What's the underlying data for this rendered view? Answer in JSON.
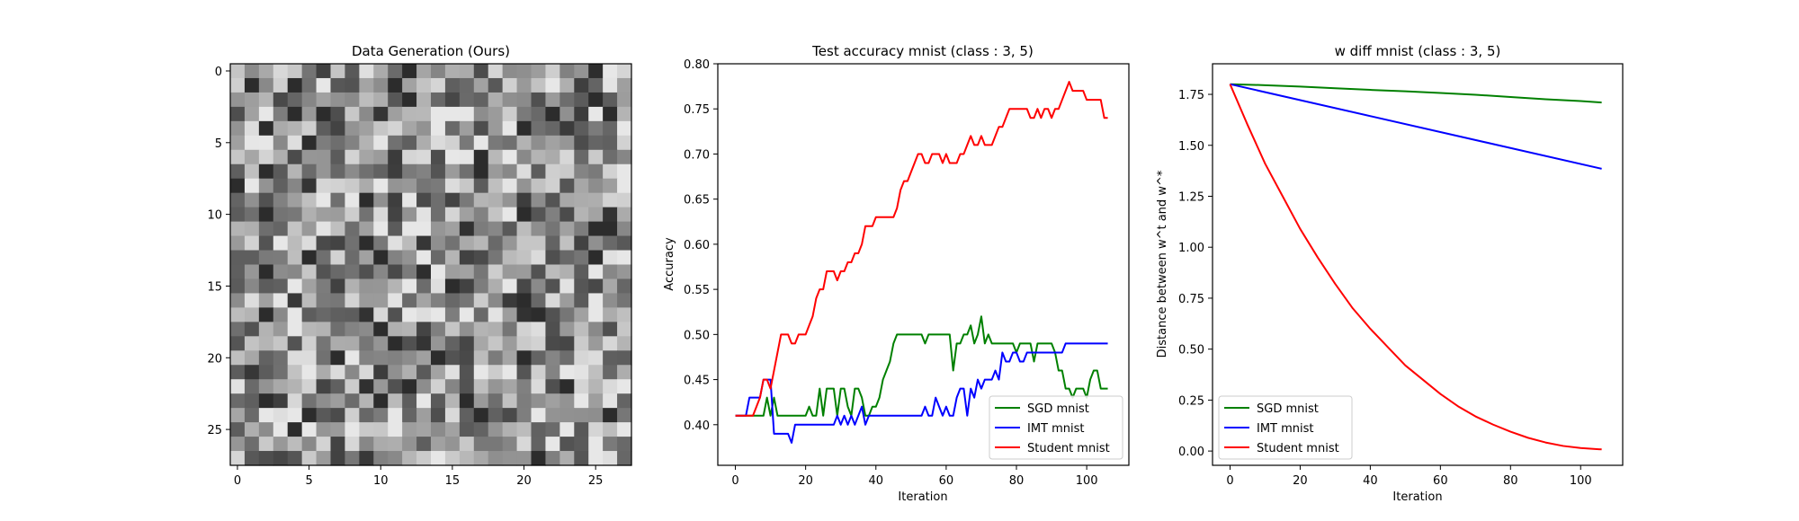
{
  "chart_data": [
    {
      "type": "heatmap",
      "title": "Data Generation (Ours)",
      "xlabel": "",
      "ylabel": "",
      "xlim": [
        -0.5,
        27.5
      ],
      "ylim": [
        27.5,
        -0.5
      ],
      "xticks": [
        0,
        5,
        10,
        15,
        20,
        25
      ],
      "yticks": [
        0,
        5,
        10,
        15,
        20,
        25
      ],
      "colormap": "gray",
      "grid_size": [
        28,
        28
      ]
    },
    {
      "type": "line",
      "title": "Test accuracy mnist (class : 3, 5)",
      "xlabel": "Iteration",
      "ylabel": "Accuracy",
      "xlim": [
        -5,
        112
      ],
      "ylim": [
        0.355,
        0.8
      ],
      "xticks": [
        0,
        20,
        40,
        60,
        80,
        100
      ],
      "yticks": [
        0.4,
        0.45,
        0.5,
        0.55,
        0.6,
        0.65,
        0.7,
        0.75,
        0.8
      ],
      "legend": "lower-right",
      "series": [
        {
          "name": "SGD mnist",
          "color": "#008000",
          "x": [
            0,
            5,
            8,
            9,
            10,
            11,
            12,
            20,
            21,
            22,
            23,
            24,
            25,
            26,
            27,
            28,
            29,
            30,
            31,
            32,
            33,
            34,
            35,
            36,
            37,
            38,
            39,
            40,
            41,
            42,
            43,
            44,
            45,
            46,
            47,
            48,
            53,
            54,
            55,
            61,
            62,
            63,
            64,
            65,
            66,
            67,
            68,
            69,
            70,
            71,
            72,
            73,
            74,
            79,
            80,
            81,
            82,
            83,
            84,
            85,
            86,
            87,
            88,
            89,
            90,
            91,
            92,
            93,
            94,
            95,
            96,
            97,
            98,
            99,
            100,
            101,
            102,
            103,
            104,
            105,
            106
          ],
          "y": [
            0.41,
            0.41,
            0.41,
            0.43,
            0.41,
            0.43,
            0.41,
            0.41,
            0.42,
            0.41,
            0.41,
            0.44,
            0.41,
            0.44,
            0.44,
            0.44,
            0.41,
            0.44,
            0.44,
            0.42,
            0.41,
            0.44,
            0.44,
            0.43,
            0.41,
            0.41,
            0.42,
            0.42,
            0.43,
            0.45,
            0.46,
            0.47,
            0.49,
            0.5,
            0.5,
            0.5,
            0.5,
            0.49,
            0.5,
            0.5,
            0.46,
            0.49,
            0.49,
            0.5,
            0.5,
            0.51,
            0.49,
            0.5,
            0.52,
            0.49,
            0.5,
            0.49,
            0.49,
            0.49,
            0.48,
            0.49,
            0.49,
            0.49,
            0.49,
            0.47,
            0.49,
            0.49,
            0.49,
            0.49,
            0.49,
            0.48,
            0.46,
            0.46,
            0.44,
            0.44,
            0.43,
            0.44,
            0.44,
            0.44,
            0.43,
            0.45,
            0.46,
            0.46,
            0.44,
            0.44,
            0.44
          ]
        },
        {
          "name": "IMT mnist",
          "color": "#0000ff",
          "x": [
            0,
            3,
            4,
            5,
            6,
            7,
            8,
            9,
            10,
            11,
            12,
            13,
            14,
            15,
            16,
            17,
            28,
            29,
            30,
            31,
            32,
            33,
            34,
            35,
            36,
            37,
            38,
            39,
            40,
            41,
            53,
            54,
            55,
            56,
            57,
            58,
            59,
            60,
            61,
            62,
            63,
            64,
            65,
            66,
            67,
            68,
            69,
            70,
            71,
            72,
            73,
            74,
            75,
            76,
            77,
            78,
            79,
            80,
            81,
            82,
            83,
            84,
            85,
            86,
            87,
            88,
            89,
            90,
            91,
            92,
            93,
            94,
            106
          ],
          "y": [
            0.41,
            0.41,
            0.43,
            0.43,
            0.43,
            0.43,
            0.45,
            0.45,
            0.45,
            0.39,
            0.39,
            0.39,
            0.39,
            0.39,
            0.38,
            0.4,
            0.4,
            0.41,
            0.4,
            0.41,
            0.4,
            0.41,
            0.4,
            0.41,
            0.42,
            0.4,
            0.41,
            0.41,
            0.41,
            0.41,
            0.41,
            0.42,
            0.41,
            0.41,
            0.43,
            0.42,
            0.41,
            0.42,
            0.41,
            0.41,
            0.43,
            0.44,
            0.44,
            0.41,
            0.44,
            0.43,
            0.45,
            0.44,
            0.45,
            0.45,
            0.45,
            0.46,
            0.45,
            0.48,
            0.47,
            0.47,
            0.48,
            0.48,
            0.47,
            0.47,
            0.48,
            0.48,
            0.48,
            0.48,
            0.48,
            0.48,
            0.48,
            0.48,
            0.48,
            0.48,
            0.48,
            0.49,
            0.49
          ]
        },
        {
          "name": "Student mnist",
          "color": "#ff0000",
          "x": [
            0,
            5,
            6,
            7,
            8,
            9,
            10,
            11,
            12,
            13,
            14,
            15,
            16,
            17,
            18,
            19,
            20,
            21,
            22,
            23,
            24,
            25,
            26,
            27,
            28,
            29,
            30,
            31,
            32,
            33,
            34,
            35,
            36,
            37,
            38,
            39,
            40,
            41,
            42,
            43,
            44,
            45,
            46,
            47,
            48,
            49,
            50,
            51,
            52,
            53,
            54,
            55,
            56,
            57,
            58,
            59,
            60,
            61,
            62,
            63,
            64,
            65,
            66,
            67,
            68,
            69,
            70,
            71,
            72,
            73,
            74,
            75,
            76,
            77,
            78,
            79,
            80,
            81,
            82,
            83,
            84,
            85,
            86,
            87,
            88,
            89,
            90,
            91,
            92,
            93,
            94,
            95,
            96,
            97,
            98,
            99,
            100,
            101,
            102,
            103,
            104,
            105,
            106
          ],
          "y": [
            0.41,
            0.41,
            0.42,
            0.43,
            0.45,
            0.45,
            0.44,
            0.46,
            0.48,
            0.5,
            0.5,
            0.5,
            0.49,
            0.49,
            0.5,
            0.5,
            0.5,
            0.51,
            0.52,
            0.54,
            0.55,
            0.55,
            0.57,
            0.57,
            0.57,
            0.56,
            0.57,
            0.57,
            0.58,
            0.58,
            0.59,
            0.59,
            0.6,
            0.62,
            0.62,
            0.62,
            0.63,
            0.63,
            0.63,
            0.63,
            0.63,
            0.63,
            0.64,
            0.66,
            0.67,
            0.67,
            0.68,
            0.69,
            0.7,
            0.7,
            0.69,
            0.69,
            0.7,
            0.7,
            0.7,
            0.69,
            0.7,
            0.69,
            0.69,
            0.69,
            0.7,
            0.7,
            0.71,
            0.72,
            0.71,
            0.71,
            0.72,
            0.71,
            0.71,
            0.71,
            0.72,
            0.73,
            0.73,
            0.74,
            0.75,
            0.75,
            0.75,
            0.75,
            0.75,
            0.75,
            0.74,
            0.74,
            0.75,
            0.74,
            0.75,
            0.75,
            0.74,
            0.75,
            0.75,
            0.76,
            0.77,
            0.78,
            0.77,
            0.77,
            0.77,
            0.77,
            0.76,
            0.76,
            0.76,
            0.76,
            0.76,
            0.74,
            0.74
          ]
        }
      ]
    },
    {
      "type": "line",
      "title": "w diff mnist (class : 3, 5)",
      "xlabel": "Iteration",
      "ylabel": "Distance between w^t and w^*",
      "xlim": [
        -5,
        112
      ],
      "ylim": [
        -0.07,
        1.9
      ],
      "xticks": [
        0,
        20,
        40,
        60,
        80,
        100
      ],
      "yticks": [
        0.0,
        0.25,
        0.5,
        0.75,
        1.0,
        1.25,
        1.5,
        1.75
      ],
      "legend": "lower-left",
      "series": [
        {
          "name": "SGD mnist",
          "color": "#008000",
          "x": [
            0,
            10,
            20,
            30,
            40,
            50,
            60,
            70,
            80,
            90,
            100,
            106
          ],
          "y": [
            1.8,
            1.795,
            1.788,
            1.78,
            1.772,
            1.765,
            1.757,
            1.748,
            1.737,
            1.726,
            1.717,
            1.71
          ]
        },
        {
          "name": "IMT mnist",
          "color": "#0000ff",
          "x": [
            0,
            106
          ],
          "y": [
            1.8,
            1.385
          ]
        },
        {
          "name": "Student mnist",
          "color": "#ff0000",
          "x": [
            0,
            5,
            10,
            15,
            20,
            25,
            30,
            35,
            40,
            45,
            50,
            55,
            60,
            65,
            70,
            75,
            80,
            85,
            90,
            95,
            100,
            106
          ],
          "y": [
            1.8,
            1.6,
            1.41,
            1.25,
            1.09,
            0.95,
            0.82,
            0.7,
            0.6,
            0.51,
            0.42,
            0.35,
            0.28,
            0.22,
            0.17,
            0.13,
            0.095,
            0.065,
            0.042,
            0.025,
            0.015,
            0.008
          ]
        }
      ]
    }
  ]
}
